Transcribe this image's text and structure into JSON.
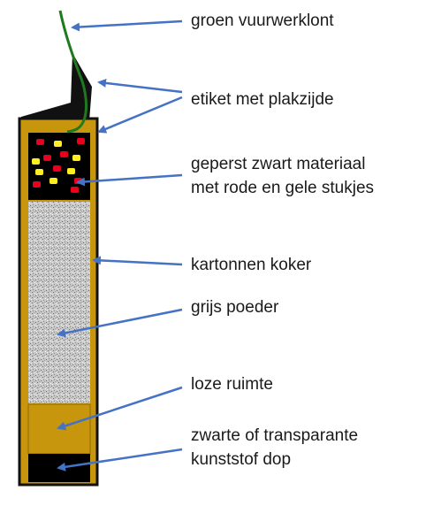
{
  "labels": {
    "fuse": "groen vuurwerklont",
    "label_sticker": "etiket met plakzijde",
    "pressed_material_1": "geperst zwart materiaal",
    "pressed_material_2": "met  rode en gele stukjes",
    "tube": "kartonnen koker",
    "powder": "grijs poeder",
    "empty_space": "loze ruimte",
    "cap_1": "zwarte of transparante",
    "cap_2": "kunststof dop"
  },
  "colors": {
    "tube": "#c8960c",
    "outline": "#111111",
    "powder_light": "#c8c8c8",
    "powder_dark": "#6e6e6e",
    "black_material": "#000000",
    "red_piece": "#e8001c",
    "yellow_piece": "#ffee22",
    "fuse": "#1f7a1f",
    "arrow": "#4472c4",
    "empty_space": "#c8960c",
    "cap": "#000000"
  }
}
